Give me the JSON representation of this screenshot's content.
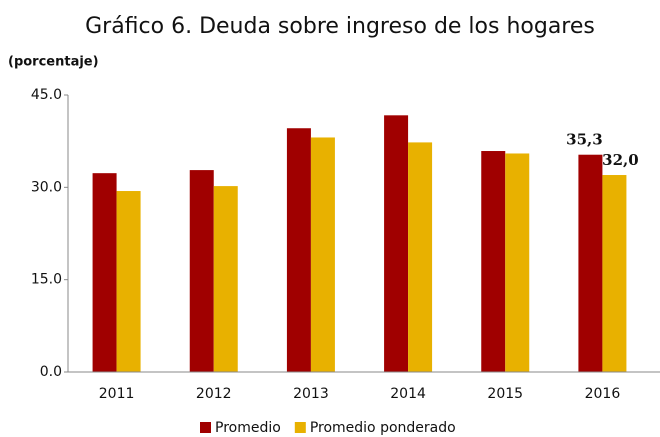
{
  "chart_data": {
    "type": "bar",
    "title": "Gráfico 6. Deuda sobre ingreso de los hogares",
    "y_label": "(porcentaje)",
    "categories": [
      "2011",
      "2012",
      "2013",
      "2014",
      "2015",
      "2016"
    ],
    "series": [
      {
        "name": "Promedio",
        "color": "#a00000",
        "values": [
          32.3,
          32.8,
          39.6,
          41.7,
          35.9,
          35.3
        ],
        "value_labels": [
          null,
          null,
          null,
          null,
          null,
          "35,3"
        ]
      },
      {
        "name": "Promedio ponderado",
        "color": "#e8b100",
        "values": [
          29.4,
          30.2,
          38.1,
          37.3,
          35.5,
          32.0
        ],
        "value_labels": [
          null,
          null,
          null,
          null,
          null,
          "32,0"
        ]
      }
    ],
    "ylim": [
      0,
      45
    ],
    "yticks": [
      {
        "value": 0,
        "label": "0.0"
      },
      {
        "value": 15,
        "label": "15.0"
      },
      {
        "value": 30,
        "label": "30.0"
      },
      {
        "value": 45,
        "label": "45.0"
      }
    ],
    "grid": false,
    "legend": "bottom"
  }
}
